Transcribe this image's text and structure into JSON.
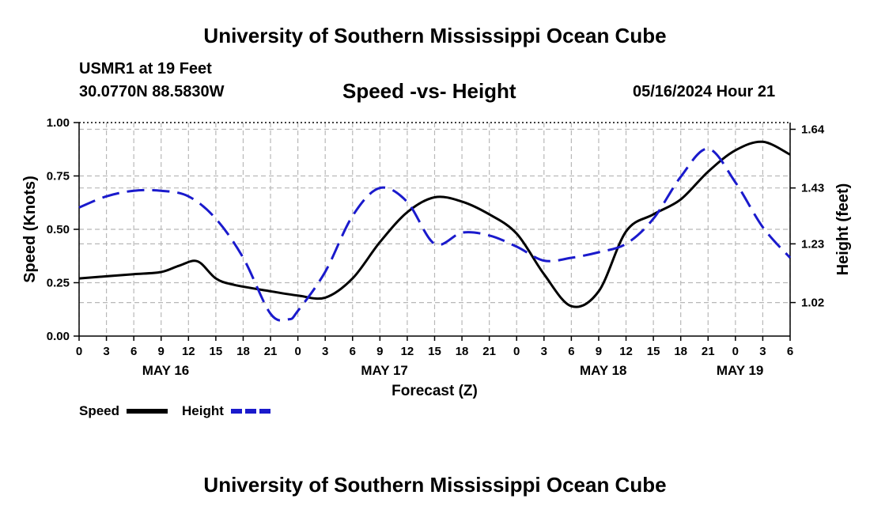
{
  "header": {
    "title": "University of Southern Mississippi Ocean Cube",
    "station": "USMR1 at 19 Feet",
    "coords": "30.0770N  88.5830W",
    "datetime": "05/16/2024 Hour 21",
    "footer_title": "University of Southern Mississippi Ocean Cube"
  },
  "chart_data": {
    "type": "line",
    "title": "Speed -vs- Height",
    "xlabel": "Forecast (Z)",
    "ylabel": "Speed (Knots)",
    "y2label": "Height (feet)",
    "grid": true,
    "xlim": [
      0,
      78
    ],
    "ylim": [
      0,
      1.0
    ],
    "y2lim": [
      0.9,
      1.664
    ],
    "yticks": [
      "0.00",
      "0.25",
      "0.50",
      "0.75",
      "1.00"
    ],
    "y2ticks": [
      "1.02",
      "1.23",
      "1.43",
      "1.64"
    ],
    "xticks": [
      "0",
      "3",
      "6",
      "9",
      "12",
      "15",
      "18",
      "21",
      "0",
      "3",
      "6",
      "9",
      "12",
      "15",
      "18",
      "21",
      "0",
      "3",
      "6",
      "9",
      "12",
      "15",
      "18",
      "21",
      "0",
      "3",
      "6"
    ],
    "day_labels": [
      {
        "label": "MAY 16",
        "x": 9.5
      },
      {
        "label": "MAY 17",
        "x": 33.5
      },
      {
        "label": "MAY 18",
        "x": 57.5
      },
      {
        "label": "MAY 19",
        "x": 72.5
      }
    ],
    "legend_position": "bottom-left",
    "series": [
      {
        "name": "Speed",
        "axis": "left",
        "color": "#000000",
        "style": "solid",
        "x": [
          0,
          3,
          6,
          9,
          11,
          13,
          15,
          17,
          21,
          24,
          27,
          30,
          33,
          36,
          39,
          42,
          45,
          48,
          51,
          54,
          57,
          60,
          63,
          66,
          69,
          72,
          75,
          78
        ],
        "y": [
          0.27,
          0.28,
          0.29,
          0.3,
          0.33,
          0.35,
          0.27,
          0.24,
          0.21,
          0.19,
          0.18,
          0.27,
          0.44,
          0.58,
          0.65,
          0.63,
          0.57,
          0.48,
          0.29,
          0.14,
          0.21,
          0.49,
          0.57,
          0.64,
          0.77,
          0.87,
          0.91,
          0.85
        ]
      },
      {
        "name": "Height",
        "axis": "right",
        "color": "#1a1acc",
        "style": "dashed",
        "x": [
          0,
          3,
          6,
          9,
          12,
          15,
          18,
          21,
          23,
          24,
          27,
          30,
          33,
          36,
          39,
          42,
          45,
          48,
          51,
          54,
          57,
          60,
          63,
          66,
          69,
          72,
          75,
          78
        ],
        "y": [
          1.36,
          1.4,
          1.42,
          1.42,
          1.4,
          1.32,
          1.18,
          0.98,
          0.96,
          0.99,
          1.13,
          1.33,
          1.43,
          1.38,
          1.23,
          1.27,
          1.26,
          1.22,
          1.17,
          1.18,
          1.2,
          1.23,
          1.32,
          1.47,
          1.57,
          1.45,
          1.29,
          1.18
        ]
      }
    ]
  }
}
